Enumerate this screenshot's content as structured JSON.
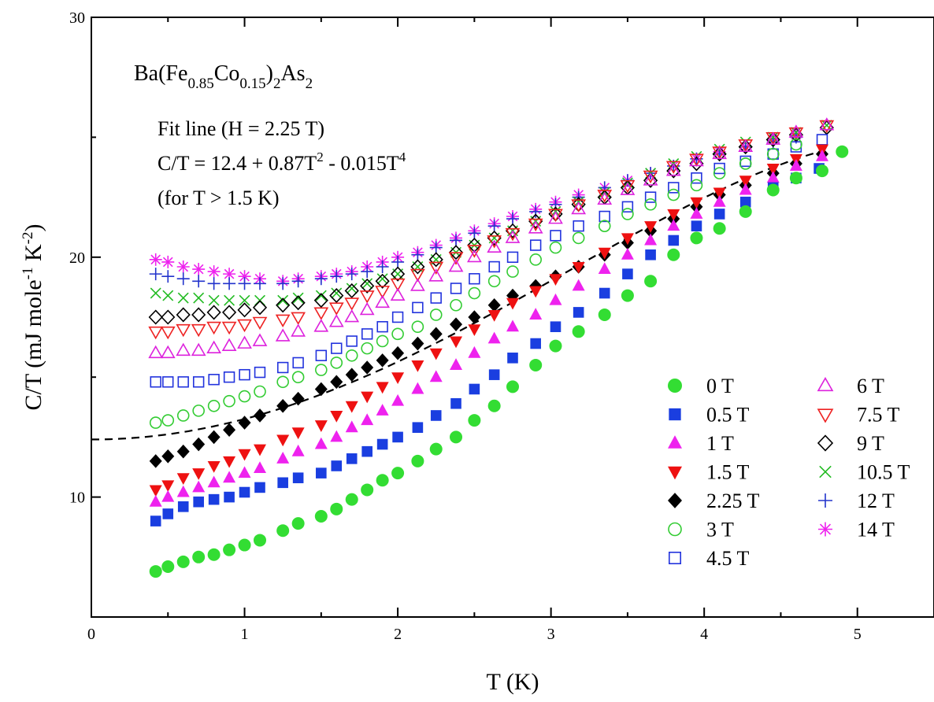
{
  "chart_data": {
    "type": "scatter",
    "title": "",
    "xlabel": "T (K)",
    "ylabel": "C/T (mJ mole-1 K-2)",
    "xlim": [
      0,
      5.5
    ],
    "ylim": [
      5,
      30
    ],
    "x_ticks": [
      "0",
      "1",
      "2",
      "3",
      "4",
      "5"
    ],
    "y_ticks": [
      "10",
      "20",
      "30"
    ],
    "grid": false,
    "legend_position": "bottom-right",
    "annotations": {
      "compound": {
        "base": "Ba(Fe",
        "s1": "0.85",
        "mid": "Co",
        "s2": "0.15",
        "close": ")",
        "s3": "2",
        "tail": "As",
        "s4": "2"
      },
      "fit_title": "Fit line (H = 2.25 T)",
      "fit_equation": {
        "a": "C/T = 12.4 + 0.87T",
        "e1": "2",
        "b": " - 0.015T",
        "e2": "4"
      },
      "fit_range": "(for T > 1.5 K)"
    },
    "fit_line": {
      "label": "Fit line (H = 2.25 T)",
      "c0": 12.4,
      "c2": 0.87,
      "c4": -0.015,
      "x_range": [
        0,
        4.75
      ],
      "style": "dashed"
    },
    "series": [
      {
        "name": "0 T",
        "marker": "circle-filled",
        "color": "#33dd33",
        "x": [
          0.42,
          0.5,
          0.6,
          0.7,
          0.8,
          0.9,
          1.0,
          1.1,
          1.25,
          1.35,
          1.5,
          1.6,
          1.7,
          1.8,
          1.9,
          2.0,
          2.13,
          2.25,
          2.38,
          2.5,
          2.63,
          2.75,
          2.9,
          3.03,
          3.18,
          3.35,
          3.5,
          3.65,
          3.8,
          3.95,
          4.1,
          4.27,
          4.45,
          4.6,
          4.77,
          4.9
        ],
        "y": [
          6.9,
          7.1,
          7.3,
          7.5,
          7.6,
          7.8,
          8.0,
          8.2,
          8.6,
          8.9,
          9.2,
          9.5,
          9.9,
          10.3,
          10.7,
          11.0,
          11.5,
          12.0,
          12.5,
          13.2,
          13.8,
          14.6,
          15.5,
          16.3,
          16.9,
          17.6,
          18.4,
          19.0,
          20.1,
          20.8,
          21.2,
          21.9,
          22.8,
          23.3,
          23.6,
          24.4
        ]
      },
      {
        "name": "0.5 T",
        "marker": "square-filled",
        "color": "#1a3ee0",
        "x": [
          0.42,
          0.5,
          0.6,
          0.7,
          0.8,
          0.9,
          1.0,
          1.1,
          1.25,
          1.35,
          1.5,
          1.6,
          1.7,
          1.8,
          1.9,
          2.0,
          2.13,
          2.25,
          2.38,
          2.5,
          2.63,
          2.75,
          2.9,
          3.03,
          3.18,
          3.35,
          3.5,
          3.65,
          3.8,
          3.95,
          4.1,
          4.27,
          4.45,
          4.6,
          4.75
        ],
        "y": [
          9.0,
          9.3,
          9.6,
          9.8,
          9.9,
          10.0,
          10.2,
          10.4,
          10.6,
          10.8,
          11.0,
          11.3,
          11.6,
          11.9,
          12.2,
          12.5,
          12.9,
          13.4,
          13.9,
          14.5,
          15.1,
          15.8,
          16.4,
          17.1,
          17.7,
          18.5,
          19.3,
          20.1,
          20.7,
          21.3,
          21.8,
          22.3,
          22.9,
          23.3,
          23.7
        ]
      },
      {
        "name": "1 T",
        "marker": "triangle-up-filled",
        "color": "#ee22ee",
        "x": [
          0.42,
          0.5,
          0.6,
          0.7,
          0.8,
          0.9,
          1.0,
          1.1,
          1.25,
          1.35,
          1.5,
          1.6,
          1.7,
          1.8,
          1.9,
          2.0,
          2.13,
          2.25,
          2.38,
          2.5,
          2.63,
          2.75,
          2.9,
          3.03,
          3.18,
          3.35,
          3.5,
          3.65,
          3.8,
          3.95,
          4.1,
          4.27,
          4.45,
          4.6,
          4.77
        ],
        "y": [
          9.8,
          10.0,
          10.2,
          10.4,
          10.6,
          10.8,
          11.0,
          11.2,
          11.6,
          11.9,
          12.2,
          12.5,
          12.9,
          13.2,
          13.6,
          14.0,
          14.5,
          15.0,
          15.5,
          16.0,
          16.6,
          17.1,
          17.6,
          18.2,
          18.8,
          19.5,
          20.1,
          20.7,
          21.3,
          21.8,
          22.3,
          22.8,
          23.3,
          23.8,
          24.2
        ]
      },
      {
        "name": "1.5 T",
        "marker": "triangle-down-filled",
        "color": "#ee1111",
        "x": [
          0.42,
          0.5,
          0.6,
          0.7,
          0.8,
          0.9,
          1.0,
          1.1,
          1.25,
          1.35,
          1.5,
          1.6,
          1.7,
          1.8,
          1.9,
          2.0,
          2.13,
          2.25,
          2.38,
          2.5,
          2.63,
          2.75,
          2.9,
          3.03,
          3.18,
          3.35,
          3.5,
          3.65,
          3.8,
          3.95,
          4.1,
          4.27,
          4.45,
          4.6,
          4.77
        ],
        "y": [
          10.3,
          10.5,
          10.8,
          11.0,
          11.3,
          11.5,
          11.8,
          12.0,
          12.4,
          12.7,
          13.0,
          13.4,
          13.8,
          14.2,
          14.6,
          15.0,
          15.5,
          16.0,
          16.5,
          17.0,
          17.6,
          18.1,
          18.6,
          19.1,
          19.6,
          20.2,
          20.8,
          21.3,
          21.8,
          22.3,
          22.7,
          23.2,
          23.7,
          24.1,
          24.5
        ]
      },
      {
        "name": "2.25 T",
        "marker": "diamond-filled",
        "color": "#000000",
        "x": [
          0.42,
          0.5,
          0.6,
          0.7,
          0.8,
          0.9,
          1.0,
          1.1,
          1.25,
          1.35,
          1.5,
          1.6,
          1.7,
          1.8,
          1.9,
          2.0,
          2.13,
          2.25,
          2.38,
          2.5,
          2.63,
          2.75,
          2.9,
          3.03,
          3.18,
          3.35,
          3.5,
          3.65,
          3.8,
          3.95,
          4.1,
          4.27,
          4.45,
          4.6,
          4.77
        ],
        "y": [
          11.5,
          11.7,
          11.9,
          12.2,
          12.5,
          12.8,
          13.1,
          13.4,
          13.8,
          14.1,
          14.5,
          14.8,
          15.1,
          15.4,
          15.7,
          16.0,
          16.4,
          16.8,
          17.2,
          17.5,
          18.0,
          18.4,
          18.8,
          19.2,
          19.6,
          20.1,
          20.6,
          21.1,
          21.6,
          22.1,
          22.6,
          23.0,
          23.5,
          23.9,
          24.3
        ]
      },
      {
        "name": "3 T",
        "marker": "circle-open",
        "color": "#33cc33",
        "x": [
          0.42,
          0.5,
          0.6,
          0.7,
          0.8,
          0.9,
          1.0,
          1.1,
          1.25,
          1.35,
          1.5,
          1.6,
          1.7,
          1.8,
          1.9,
          2.0,
          2.13,
          2.25,
          2.38,
          2.5,
          2.63,
          2.75,
          2.9,
          3.03,
          3.18,
          3.35,
          3.5,
          3.65,
          3.8,
          3.95,
          4.1,
          4.27,
          4.45,
          4.6
        ],
        "y": [
          13.1,
          13.2,
          13.4,
          13.6,
          13.8,
          14.0,
          14.2,
          14.4,
          14.8,
          15.0,
          15.3,
          15.6,
          15.9,
          16.2,
          16.5,
          16.8,
          17.1,
          17.6,
          18.0,
          18.5,
          19.0,
          19.4,
          19.9,
          20.4,
          20.8,
          21.3,
          21.8,
          22.2,
          22.6,
          23.0,
          23.5,
          23.9,
          24.3,
          24.7
        ]
      },
      {
        "name": "4.5 T",
        "marker": "square-open",
        "color": "#2233dd",
        "x": [
          0.42,
          0.5,
          0.6,
          0.7,
          0.8,
          0.9,
          1.0,
          1.1,
          1.25,
          1.35,
          1.5,
          1.6,
          1.7,
          1.8,
          1.9,
          2.0,
          2.13,
          2.25,
          2.38,
          2.5,
          2.63,
          2.75,
          2.9,
          3.03,
          3.18,
          3.35,
          3.5,
          3.65,
          3.8,
          3.95,
          4.1,
          4.27,
          4.45,
          4.6,
          4.77
        ],
        "y": [
          14.8,
          14.8,
          14.8,
          14.8,
          14.9,
          15.0,
          15.1,
          15.2,
          15.4,
          15.6,
          15.9,
          16.2,
          16.5,
          16.8,
          17.1,
          17.5,
          17.9,
          18.3,
          18.7,
          19.1,
          19.6,
          20.0,
          20.5,
          20.9,
          21.3,
          21.7,
          22.1,
          22.5,
          22.9,
          23.3,
          23.7,
          24.0,
          24.3,
          24.6,
          24.9
        ]
      },
      {
        "name": "6 T",
        "marker": "triangle-up-open",
        "color": "#dd22dd",
        "x": [
          0.42,
          0.5,
          0.6,
          0.7,
          0.8,
          0.9,
          1.0,
          1.1,
          1.25,
          1.35,
          1.5,
          1.6,
          1.7,
          1.8,
          1.9,
          2.0,
          2.13,
          2.25,
          2.38,
          2.5,
          2.63,
          2.75,
          2.9,
          3.03,
          3.18,
          3.35,
          3.5,
          3.65,
          3.8,
          3.95,
          4.1,
          4.27,
          4.45,
          4.6,
          4.8
        ],
        "y": [
          16.0,
          16.0,
          16.1,
          16.1,
          16.2,
          16.3,
          16.4,
          16.5,
          16.7,
          16.9,
          17.1,
          17.3,
          17.5,
          17.8,
          18.1,
          18.4,
          18.8,
          19.2,
          19.6,
          20.0,
          20.4,
          20.8,
          21.2,
          21.6,
          22.0,
          22.4,
          22.8,
          23.2,
          23.6,
          24.0,
          24.3,
          24.6,
          24.9,
          25.2,
          25.5
        ]
      },
      {
        "name": "7.5 T",
        "marker": "triangle-down-open",
        "color": "#ee2222",
        "x": [
          0.42,
          0.5,
          0.6,
          0.7,
          0.8,
          0.9,
          1.0,
          1.1,
          1.25,
          1.35,
          1.5,
          1.6,
          1.7,
          1.8,
          1.9,
          2.0,
          2.13,
          2.25,
          2.38,
          2.5,
          2.63,
          2.75,
          2.9,
          3.03,
          3.18,
          3.35,
          3.5,
          3.65,
          3.8,
          3.95,
          4.1,
          4.27,
          4.45,
          4.6,
          4.8
        ],
        "y": [
          16.9,
          16.9,
          17.0,
          17.0,
          17.1,
          17.1,
          17.2,
          17.3,
          17.4,
          17.5,
          17.7,
          17.9,
          18.1,
          18.4,
          18.6,
          18.9,
          19.3,
          19.6,
          20.0,
          20.3,
          20.7,
          21.0,
          21.4,
          21.8,
          22.2,
          22.6,
          23.0,
          23.4,
          23.8,
          24.1,
          24.4,
          24.7,
          25.0,
          25.2,
          25.5
        ]
      },
      {
        "name": "9 T",
        "marker": "diamond-open",
        "color": "#000000",
        "x": [
          0.42,
          0.5,
          0.6,
          0.7,
          0.8,
          0.9,
          1.0,
          1.1,
          1.25,
          1.35,
          1.5,
          1.6,
          1.7,
          1.8,
          1.9,
          2.0,
          2.13,
          2.25,
          2.38,
          2.5,
          2.63,
          2.75,
          2.9,
          3.03,
          3.18,
          3.35,
          3.5,
          3.65,
          3.8,
          3.95,
          4.1,
          4.27,
          4.45,
          4.6,
          4.8
        ],
        "y": [
          17.5,
          17.5,
          17.6,
          17.6,
          17.7,
          17.7,
          17.8,
          17.9,
          18.0,
          18.1,
          18.2,
          18.4,
          18.6,
          18.8,
          19.0,
          19.3,
          19.6,
          19.9,
          20.2,
          20.5,
          20.8,
          21.1,
          21.5,
          21.8,
          22.2,
          22.5,
          22.9,
          23.2,
          23.6,
          23.9,
          24.3,
          24.6,
          24.9,
          25.1,
          25.4
        ]
      },
      {
        "name": "10.5 T",
        "marker": "x-cross",
        "color": "#22bb22",
        "x": [
          0.42,
          0.5,
          0.6,
          0.7,
          0.8,
          0.9,
          1.0,
          1.1,
          1.25,
          1.35,
          1.5,
          1.6,
          1.7,
          1.8,
          1.9,
          2.0,
          2.13,
          2.25,
          2.38,
          2.5,
          2.63,
          2.75,
          2.9,
          3.03,
          3.18,
          3.35,
          3.5,
          3.65,
          3.8,
          3.95,
          4.1,
          4.27,
          4.45,
          4.6,
          4.8
        ],
        "y": [
          18.5,
          18.4,
          18.3,
          18.3,
          18.2,
          18.2,
          18.2,
          18.2,
          18.2,
          18.3,
          18.4,
          18.5,
          18.7,
          18.9,
          19.1,
          19.3,
          19.6,
          19.9,
          20.2,
          20.5,
          20.8,
          21.1,
          21.5,
          21.9,
          22.3,
          22.7,
          23.1,
          23.5,
          23.9,
          24.2,
          24.5,
          24.8,
          25.0,
          25.2,
          25.5
        ]
      },
      {
        "name": "12 T",
        "marker": "plus",
        "color": "#2233cc",
        "x": [
          0.42,
          0.5,
          0.6,
          0.7,
          0.8,
          0.9,
          1.0,
          1.1,
          1.25,
          1.35,
          1.5,
          1.6,
          1.7,
          1.8,
          1.9,
          2.0,
          2.13,
          2.25,
          2.38,
          2.5,
          2.63,
          2.75,
          2.9,
          3.03,
          3.18,
          3.35,
          3.5,
          3.65,
          3.8,
          3.95,
          4.1,
          4.27,
          4.45,
          4.6
        ],
        "y": [
          19.3,
          19.2,
          19.1,
          19.0,
          18.9,
          18.9,
          18.9,
          18.9,
          18.9,
          19.0,
          19.1,
          19.2,
          19.3,
          19.4,
          19.6,
          19.8,
          20.1,
          20.4,
          20.7,
          21.0,
          21.3,
          21.6,
          21.9,
          22.2,
          22.5,
          22.9,
          23.2,
          23.5,
          23.8,
          24.1,
          24.3,
          24.6,
          24.8,
          25.0
        ]
      },
      {
        "name": "14 T",
        "marker": "star",
        "color": "#ee22ee",
        "x": [
          0.42,
          0.5,
          0.6,
          0.7,
          0.8,
          0.9,
          1.0,
          1.1,
          1.25,
          1.35,
          1.5,
          1.6,
          1.7,
          1.8,
          1.9,
          2.0,
          2.13,
          2.25,
          2.38,
          2.5,
          2.63,
          2.75,
          2.9,
          3.03,
          3.18,
          3.35,
          3.5,
          3.65,
          3.8,
          3.95,
          4.1,
          4.27,
          4.45,
          4.6
        ],
        "y": [
          19.9,
          19.8,
          19.6,
          19.5,
          19.4,
          19.3,
          19.2,
          19.1,
          19.0,
          19.1,
          19.2,
          19.3,
          19.4,
          19.6,
          19.8,
          20.0,
          20.2,
          20.5,
          20.8,
          21.1,
          21.4,
          21.7,
          22.0,
          22.3,
          22.6,
          22.9,
          23.2,
          23.5,
          23.8,
          24.1,
          24.4,
          24.6,
          24.9,
          25.1
        ]
      }
    ]
  }
}
